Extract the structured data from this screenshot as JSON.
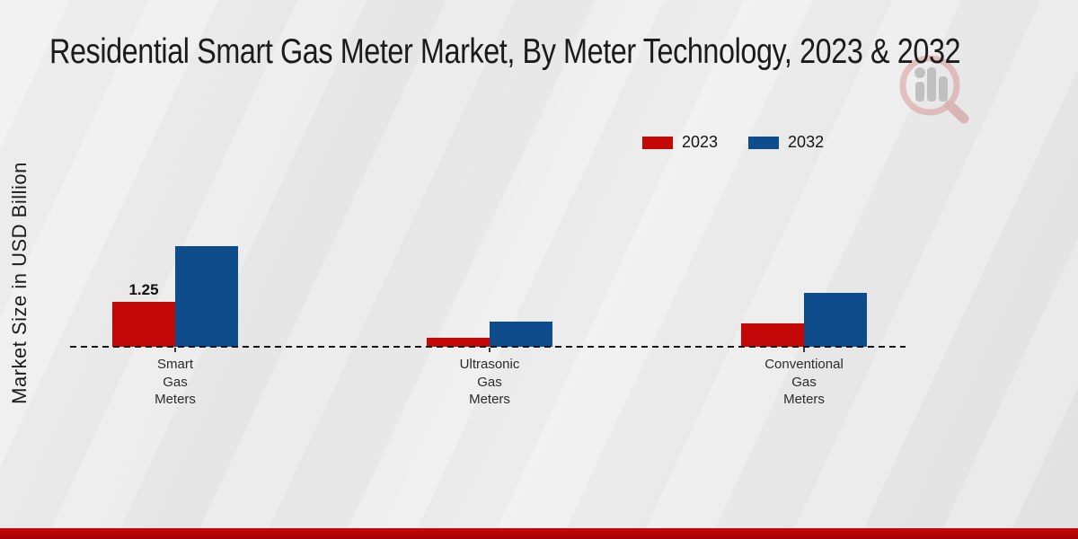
{
  "title": "Residential Smart Gas Meter Market, By Meter Technology, 2023 & 2032",
  "y_axis_label": "Market Size in USD Billion",
  "legend": {
    "position": "top-right",
    "items": [
      {
        "label": "2023",
        "color": "#c40808"
      },
      {
        "label": "2032",
        "color": "#0f4c8c"
      }
    ]
  },
  "colors": {
    "series_2023": "#c40808",
    "series_2032": "#0f4c8c",
    "baseline": "#141414",
    "footer_band_top": "#c90707",
    "footer_band_bottom": "#a00404",
    "background": "#e9e9e9",
    "title_text": "#1b1b1b"
  },
  "watermark": {
    "icon": "market-research-future-logo",
    "style": "faded magnifier with bar chart"
  },
  "footer": {
    "band": true
  },
  "chart_data": {
    "type": "bar",
    "title": "Residential Smart Gas Meter Market, By Meter Technology, 2023 & 2032",
    "xlabel": "",
    "ylabel": "Market Size in USD Billion",
    "categories": [
      "Smart Gas Meters",
      "Ultrasonic Gas Meters",
      "Conventional Gas Meters"
    ],
    "series": [
      {
        "name": "2023",
        "color": "#c40808",
        "values": [
          1.25,
          0.25,
          0.65
        ]
      },
      {
        "name": "2032",
        "color": "#0f4c8c",
        "values": [
          2.8,
          0.7,
          1.5
        ]
      }
    ],
    "annotations": [
      {
        "series": "2023",
        "category": "Smart Gas Meters",
        "text": "1.25"
      }
    ],
    "ylim": [
      0,
      3.2
    ],
    "grid": false,
    "y_axis_ticks_visible": false,
    "zero_line_style": "dashed",
    "legend_position": "top-right"
  }
}
